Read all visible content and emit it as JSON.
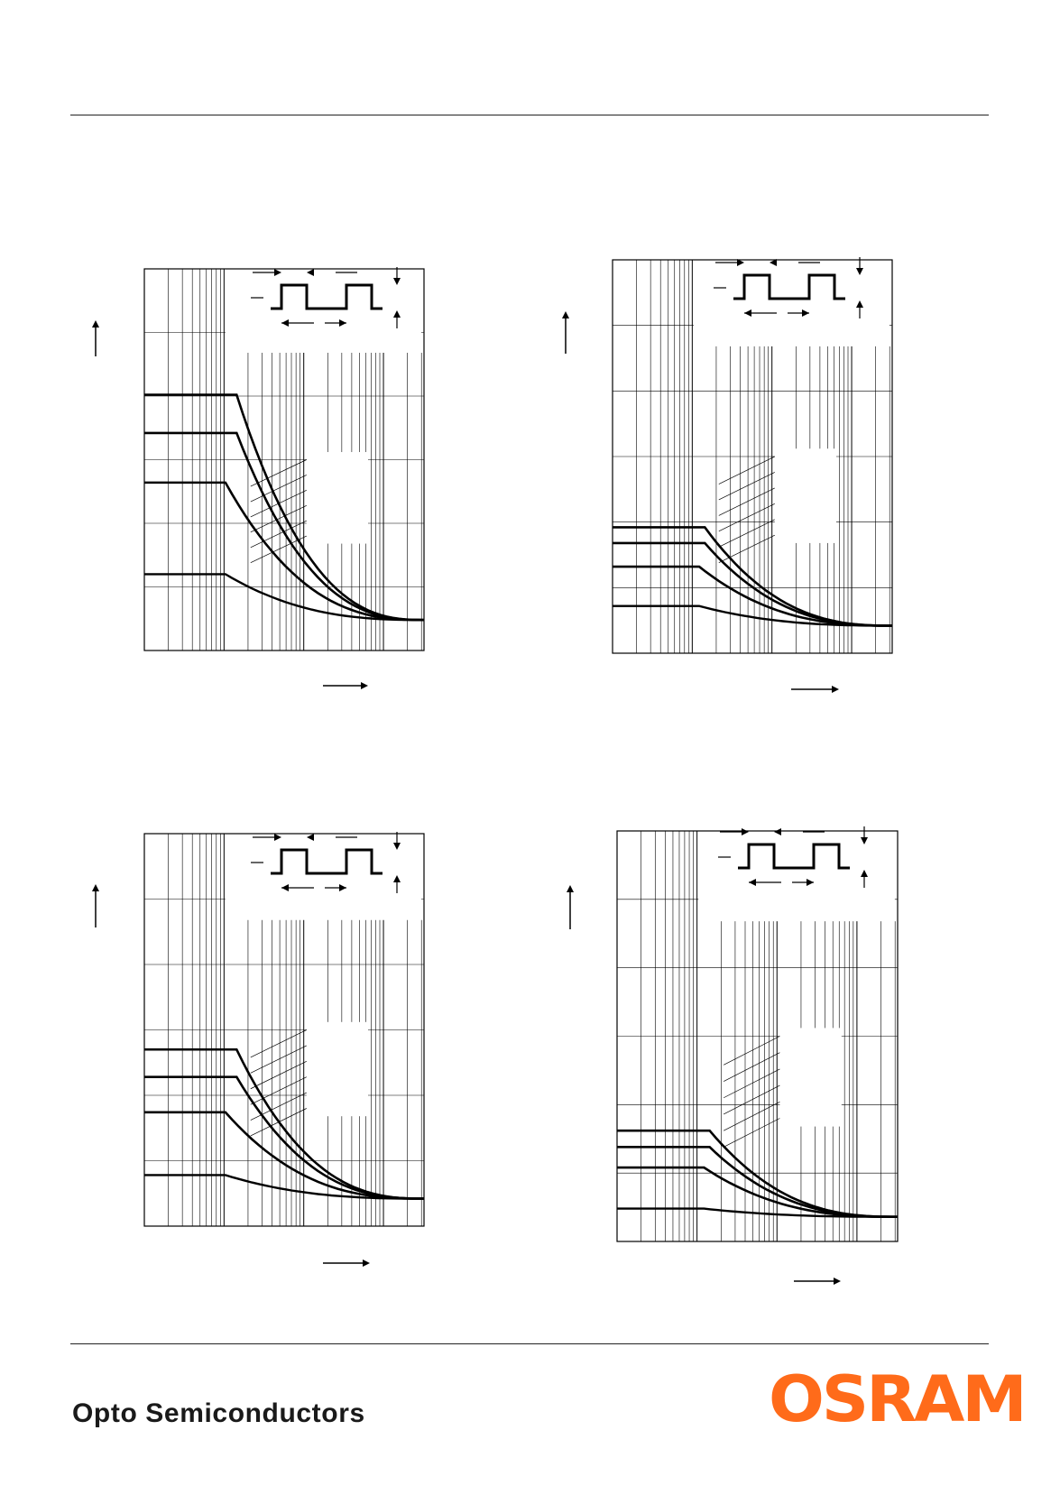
{
  "footer": {
    "division": "Opto Semiconductors",
    "brand": "OSRAM"
  },
  "colors": {
    "brand_orange": "#ff6b1a",
    "line": "#000000"
  },
  "icons": {
    "pulse": "pulse-waveform-icon",
    "axis_arrow": "axis-arrow-icon"
  }
}
